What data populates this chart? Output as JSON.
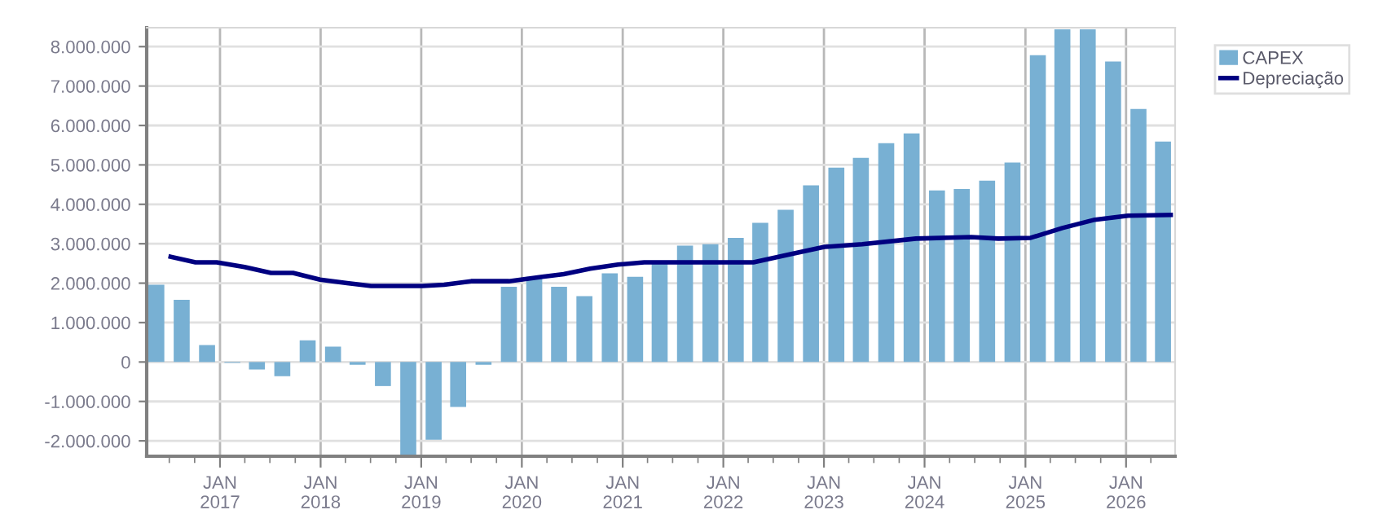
{
  "chart_data": {
    "type": "bar",
    "x": [
      "2016-05-15",
      "2016-08-15",
      "2016-11-15",
      "2017-02-15",
      "2017-05-15",
      "2017-08-15",
      "2017-11-15",
      "2018-02-15",
      "2018-05-15",
      "2018-08-15",
      "2018-11-15",
      "2019-02-15",
      "2019-05-15",
      "2019-08-15",
      "2019-11-15",
      "2020-02-15",
      "2020-05-15",
      "2020-08-15",
      "2020-11-15",
      "2021-02-15",
      "2021-05-15",
      "2021-08-15",
      "2021-11-15",
      "2022-02-15",
      "2022-05-15",
      "2022-08-15",
      "2022-11-15",
      "2023-02-15",
      "2023-05-15",
      "2023-08-15",
      "2023-11-15",
      "2024-02-15",
      "2024-05-15",
      "2024-08-15",
      "2024-11-15",
      "2025-02-15",
      "2025-05-15",
      "2025-08-15",
      "2025-11-15",
      "2026-02-15",
      "2026-05-15"
    ],
    "series": [
      {
        "name": "CAPEX",
        "color": "#78b0d3",
        "values": [
          1960000,
          1580000,
          430000,
          -20000,
          -190000,
          -360000,
          550000,
          390000,
          -70000,
          -610000,
          -2350000,
          -1970000,
          -1140000,
          -70000,
          1910000,
          2160000,
          1910000,
          1670000,
          2250000,
          2160000,
          2530000,
          2950000,
          2990000,
          3150000,
          3530000,
          3860000,
          4480000,
          4930000,
          5180000,
          5550000,
          5800000,
          4350000,
          4390000,
          4600000,
          5060000,
          7780000,
          8440000,
          8440000,
          7620000,
          6420000,
          5590000
        ]
      },
      {
        "name": "Depreciação",
        "type": "line",
        "color": "#000080",
        "marker": "none",
        "line_style": "solid",
        "x": [
          "2016-07-06",
          "2016-10-04",
          "2016-12-20",
          "2017-03-31",
          "2017-07-05",
          "2017-09-23",
          "2017-12-30",
          "2018-04-07",
          "2018-07-03",
          "2019-01-06",
          "2019-03-25",
          "2019-07-01",
          "2019-11-15",
          "2020-03-15",
          "2020-06-01",
          "2020-09-05",
          "2020-12-15",
          "2021-03-20",
          "2021-10-04",
          "2022-04-20",
          "2022-09-05",
          "2023-01-03",
          "2023-05-20",
          "2023-12-01",
          "2024-06-18",
          "2024-09-25",
          "2025-01-20",
          "2025-05-15",
          "2025-09-10",
          "2026-01-08",
          "2026-06-12"
        ],
        "values": [
          2670000,
          2530000,
          2530000,
          2410000,
          2260000,
          2260000,
          2090000,
          2000000,
          1930000,
          1930000,
          1960000,
          2050000,
          2050000,
          2160000,
          2230000,
          2370000,
          2470000,
          2530000,
          2530000,
          2530000,
          2740000,
          2920000,
          2990000,
          3130000,
          3170000,
          3130000,
          3150000,
          3400000,
          3610000,
          3710000,
          3730000
        ]
      }
    ],
    "xlim": [
      "2016-04-10",
      "2026-06-28"
    ],
    "xticks": [
      {
        "value": "2016-07-01",
        "label": null
      },
      {
        "value": "2016-10-01",
        "label": null
      },
      {
        "value": "2017-01-01",
        "label": "JAN\n2017"
      },
      {
        "value": "2017-04-01",
        "label": null
      },
      {
        "value": "2017-07-01",
        "label": null
      },
      {
        "value": "2017-10-01",
        "label": null
      },
      {
        "value": "2018-01-01",
        "label": "JAN\n2018"
      },
      {
        "value": "2018-04-01",
        "label": null
      },
      {
        "value": "2018-07-01",
        "label": null
      },
      {
        "value": "2018-10-01",
        "label": null
      },
      {
        "value": "2019-01-01",
        "label": "JAN\n2019"
      },
      {
        "value": "2019-04-01",
        "label": null
      },
      {
        "value": "2019-07-01",
        "label": null
      },
      {
        "value": "2019-10-01",
        "label": null
      },
      {
        "value": "2020-01-01",
        "label": "JAN\n2020"
      },
      {
        "value": "2020-04-01",
        "label": null
      },
      {
        "value": "2020-07-01",
        "label": null
      },
      {
        "value": "2020-10-01",
        "label": null
      },
      {
        "value": "2021-01-01",
        "label": "JAN\n2021"
      },
      {
        "value": "2021-04-01",
        "label": null
      },
      {
        "value": "2021-07-01",
        "label": null
      },
      {
        "value": "2021-10-01",
        "label": null
      },
      {
        "value": "2022-01-01",
        "label": "JAN\n2022"
      },
      {
        "value": "2022-04-01",
        "label": null
      },
      {
        "value": "2022-07-01",
        "label": null
      },
      {
        "value": "2022-10-01",
        "label": null
      },
      {
        "value": "2023-01-01",
        "label": "JAN\n2023"
      },
      {
        "value": "2023-04-01",
        "label": null
      },
      {
        "value": "2023-07-01",
        "label": null
      },
      {
        "value": "2023-10-01",
        "label": null
      },
      {
        "value": "2024-01-01",
        "label": "JAN\n2024"
      },
      {
        "value": "2024-04-01",
        "label": null
      },
      {
        "value": "2024-07-01",
        "label": null
      },
      {
        "value": "2024-10-01",
        "label": null
      },
      {
        "value": "2025-01-01",
        "label": "JAN\n2025"
      },
      {
        "value": "2025-04-01",
        "label": null
      },
      {
        "value": "2025-07-01",
        "label": null
      },
      {
        "value": "2025-10-01",
        "label": null
      },
      {
        "value": "2026-01-01",
        "label": "JAN\n2026"
      },
      {
        "value": "2026-04-01",
        "label": null
      }
    ],
    "ylim": [
      -2390000,
      8480000
    ],
    "yticks": [
      {
        "value": -2000000,
        "label": "-2.000.000"
      },
      {
        "value": -1000000,
        "label": "-1.000.000"
      },
      0,
      {
        "value": 1000000,
        "label": "1.000.000"
      },
      {
        "value": 2000000,
        "label": "2.000.000"
      },
      {
        "value": 3000000,
        "label": "3.000.000"
      },
      {
        "value": 4000000,
        "label": "4.000.000"
      },
      {
        "value": 5000000,
        "label": "5.000.000"
      },
      {
        "value": 6000000,
        "label": "6.000.000"
      },
      {
        "value": 7000000,
        "label": "7.000.000"
      },
      {
        "value": 8000000,
        "label": "8.000.000"
      }
    ],
    "grid": true,
    "legend": "top right"
  }
}
